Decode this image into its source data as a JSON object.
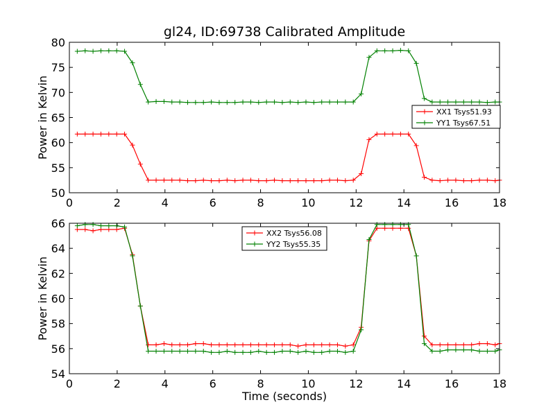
{
  "figure": {
    "title": "gl24, ID:69738 Calibrated Amplitude"
  },
  "chart_data": [
    {
      "type": "line",
      "title": "gl24, ID:69738 Calibrated Amplitude",
      "xlabel": "",
      "ylabel": "Power in Kelvin",
      "xlim": [
        0,
        18
      ],
      "ylim": [
        50,
        80
      ],
      "xticks": [
        0,
        2,
        4,
        6,
        8,
        10,
        12,
        14,
        16,
        18
      ],
      "yticks": [
        50,
        55,
        60,
        65,
        70,
        75,
        80
      ],
      "legend_position": "center-right",
      "grid": false,
      "x": [
        0.33,
        0.66,
        0.99,
        1.32,
        1.65,
        1.98,
        2.31,
        2.64,
        2.97,
        3.3,
        3.63,
        3.96,
        4.29,
        4.62,
        4.95,
        5.28,
        5.61,
        5.94,
        6.27,
        6.6,
        6.93,
        7.26,
        7.59,
        7.92,
        8.25,
        8.58,
        8.91,
        9.24,
        9.57,
        9.9,
        10.23,
        10.56,
        10.89,
        11.22,
        11.55,
        11.88,
        12.21,
        12.54,
        12.87,
        13.2,
        13.53,
        13.86,
        14.19,
        14.52,
        14.85,
        15.18,
        15.51,
        15.84,
        16.17,
        16.5,
        16.83,
        17.16,
        17.49,
        17.82,
        18.0
      ],
      "series": [
        {
          "name": "XX1 Tsys51.93",
          "color": "#ff0000",
          "values": [
            61.7,
            61.7,
            61.7,
            61.7,
            61.7,
            61.7,
            61.7,
            59.5,
            55.7,
            52.5,
            52.5,
            52.5,
            52.5,
            52.5,
            52.4,
            52.4,
            52.5,
            52.4,
            52.4,
            52.5,
            52.4,
            52.5,
            52.5,
            52.4,
            52.4,
            52.5,
            52.4,
            52.4,
            52.4,
            52.4,
            52.4,
            52.4,
            52.5,
            52.5,
            52.4,
            52.5,
            53.8,
            60.6,
            61.7,
            61.7,
            61.7,
            61.7,
            61.7,
            59.4,
            53.1,
            52.5,
            52.4,
            52.5,
            52.5,
            52.4,
            52.4,
            52.5,
            52.5,
            52.4,
            52.5
          ]
        },
        {
          "name": "YY1 Tsys67.51",
          "color": "#008000",
          "values": [
            78.2,
            78.3,
            78.2,
            78.3,
            78.3,
            78.3,
            78.2,
            75.9,
            71.6,
            68.1,
            68.2,
            68.2,
            68.1,
            68.1,
            68.0,
            68.0,
            68.0,
            68.1,
            68.0,
            68.0,
            68.0,
            68.1,
            68.1,
            68.0,
            68.1,
            68.1,
            68.0,
            68.1,
            68.0,
            68.1,
            68.0,
            68.1,
            68.1,
            68.1,
            68.1,
            68.1,
            69.7,
            77.0,
            78.3,
            78.3,
            78.3,
            78.4,
            78.3,
            75.8,
            68.8,
            68.1,
            68.1,
            68.1,
            68.1,
            68.1,
            68.1,
            68.1,
            68.0,
            68.1,
            68.1
          ]
        }
      ]
    },
    {
      "type": "line",
      "title": "",
      "xlabel": "Time (seconds)",
      "ylabel": "Power in Kelvin",
      "xlim": [
        0,
        18
      ],
      "ylim": [
        54,
        66
      ],
      "xticks": [
        0,
        2,
        4,
        6,
        8,
        10,
        12,
        14,
        16,
        18
      ],
      "yticks": [
        54,
        56,
        58,
        60,
        62,
        64,
        66
      ],
      "legend_position": "upper-center",
      "grid": false,
      "x": [
        0.33,
        0.66,
        0.99,
        1.32,
        1.65,
        1.98,
        2.31,
        2.64,
        2.97,
        3.3,
        3.63,
        3.96,
        4.29,
        4.62,
        4.95,
        5.28,
        5.61,
        5.94,
        6.27,
        6.6,
        6.93,
        7.26,
        7.59,
        7.92,
        8.25,
        8.58,
        8.91,
        9.24,
        9.57,
        9.9,
        10.23,
        10.56,
        10.89,
        11.22,
        11.55,
        11.88,
        12.21,
        12.54,
        12.87,
        13.2,
        13.53,
        13.86,
        14.19,
        14.52,
        14.85,
        15.18,
        15.51,
        15.84,
        16.17,
        16.5,
        16.83,
        17.16,
        17.49,
        17.82,
        18.0
      ],
      "series": [
        {
          "name": "XX2 Tsys56.08",
          "color": "#ff0000",
          "values": [
            65.5,
            65.5,
            65.4,
            65.5,
            65.5,
            65.5,
            65.6,
            63.5,
            59.4,
            56.3,
            56.3,
            56.4,
            56.3,
            56.3,
            56.3,
            56.4,
            56.4,
            56.3,
            56.3,
            56.3,
            56.3,
            56.3,
            56.3,
            56.3,
            56.3,
            56.3,
            56.3,
            56.3,
            56.2,
            56.3,
            56.3,
            56.3,
            56.3,
            56.3,
            56.2,
            56.3,
            57.7,
            64.6,
            65.6,
            65.6,
            65.6,
            65.6,
            65.6,
            63.4,
            57.0,
            56.3,
            56.3,
            56.3,
            56.3,
            56.3,
            56.3,
            56.4,
            56.4,
            56.3,
            56.4
          ]
        },
        {
          "name": "YY2 Tsys55.35",
          "color": "#008000",
          "values": [
            65.8,
            65.9,
            65.9,
            65.8,
            65.8,
            65.8,
            65.7,
            63.4,
            59.4,
            55.8,
            55.8,
            55.8,
            55.8,
            55.8,
            55.8,
            55.8,
            55.8,
            55.7,
            55.7,
            55.8,
            55.7,
            55.7,
            55.7,
            55.8,
            55.7,
            55.7,
            55.8,
            55.8,
            55.7,
            55.8,
            55.7,
            55.7,
            55.8,
            55.8,
            55.7,
            55.8,
            57.5,
            64.7,
            65.9,
            65.9,
            65.9,
            65.9,
            65.9,
            63.4,
            56.4,
            55.8,
            55.8,
            55.9,
            55.9,
            55.9,
            55.9,
            55.8,
            55.8,
            55.8,
            55.9
          ]
        }
      ]
    }
  ]
}
